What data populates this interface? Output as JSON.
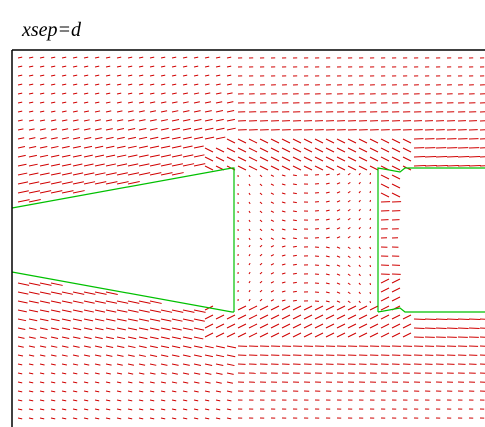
{
  "title": "xsep=d"
}
